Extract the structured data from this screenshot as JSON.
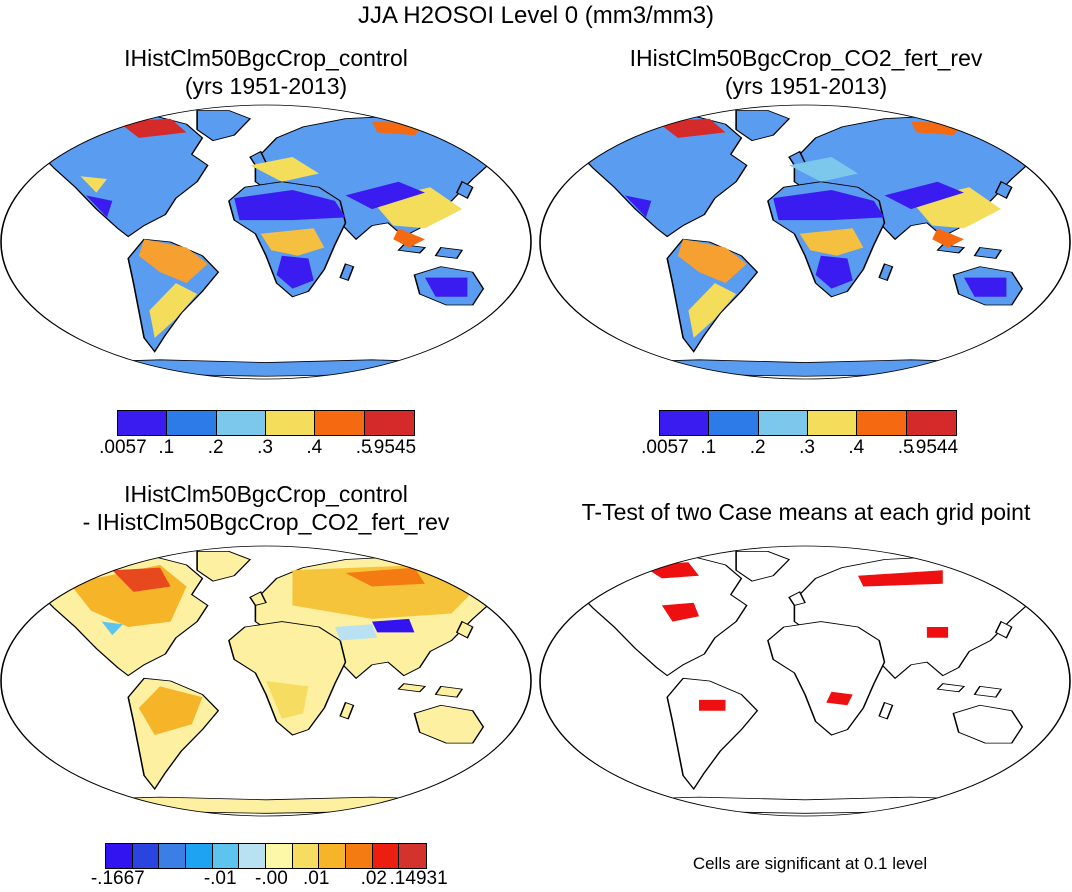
{
  "figure": {
    "title": "JJA H2OSOI Level 0 (mm3/mm3)"
  },
  "panels": {
    "control": {
      "title_line1": "IHistClm50BgcCrop_control",
      "title_line2": "(yrs 1951-2013)"
    },
    "fert": {
      "title_line1": "IHistClm50BgcCrop_CO2_fert_rev",
      "title_line2": "(yrs 1951-2013)"
    },
    "diff": {
      "title_line1": "IHistClm50BgcCrop_control",
      "title_line2": "- IHistClm50BgcCrop_CO2_fert_rev"
    },
    "ttest": {
      "title": "T-Test of two Case means at each grid point",
      "note": "Cells are significant at 0.1 level"
    }
  },
  "colorbars": {
    "control": {
      "colors": [
        "#3a1cf0",
        "#2c7be6",
        "#7cc8ec",
        "#f5dd5c",
        "#f56a10",
        "#d42a2a"
      ],
      "labels": [
        ".0057",
        ".1",
        ".2",
        ".3",
        ".4",
        ".5",
        ".9545"
      ]
    },
    "fert": {
      "colors": [
        "#3a1cf0",
        "#2c7be6",
        "#7cc8ec",
        "#f5dd5c",
        "#f56a10",
        "#d42a2a"
      ],
      "labels": [
        ".0057",
        ".1",
        ".2",
        ".3",
        ".4",
        ".5",
        ".9544"
      ]
    },
    "diff": {
      "colors": [
        "#3214f0",
        "#2a44e0",
        "#3a7ee6",
        "#1ea2f2",
        "#5cc4ee",
        "#b8e2f2",
        "#fdf7a8",
        "#f7dc62",
        "#f6b428",
        "#f47a12",
        "#ec1e10",
        "#d4322c"
      ],
      "labels": [
        "-.1667",
        "-.01",
        "-.00",
        ".01",
        ".02",
        ".14931"
      ]
    }
  },
  "chart_data": {
    "type": "heatmap",
    "title": "JJA H2OSOI Level 0 (mm3/mm3)",
    "panels": [
      {
        "name": "IHistClm50BgcCrop_control (yrs 1951-2013)",
        "range": [
          0.0057,
          0.9545
        ],
        "levels": [
          0.0057,
          0.1,
          0.2,
          0.3,
          0.4,
          0.5,
          0.9545
        ]
      },
      {
        "name": "IHistClm50BgcCrop_CO2_fert_rev (yrs 1951-2013)",
        "range": [
          0.0057,
          0.9544
        ],
        "levels": [
          0.0057,
          0.1,
          0.2,
          0.3,
          0.4,
          0.5,
          0.9544
        ]
      },
      {
        "name": "IHistClm50BgcCrop_control - IHistClm50BgcCrop_CO2_fert_rev",
        "range": [
          -0.1667,
          0.14931
        ]
      },
      {
        "name": "T-Test of two Case means at each grid point",
        "significance": 0.1
      }
    ]
  }
}
